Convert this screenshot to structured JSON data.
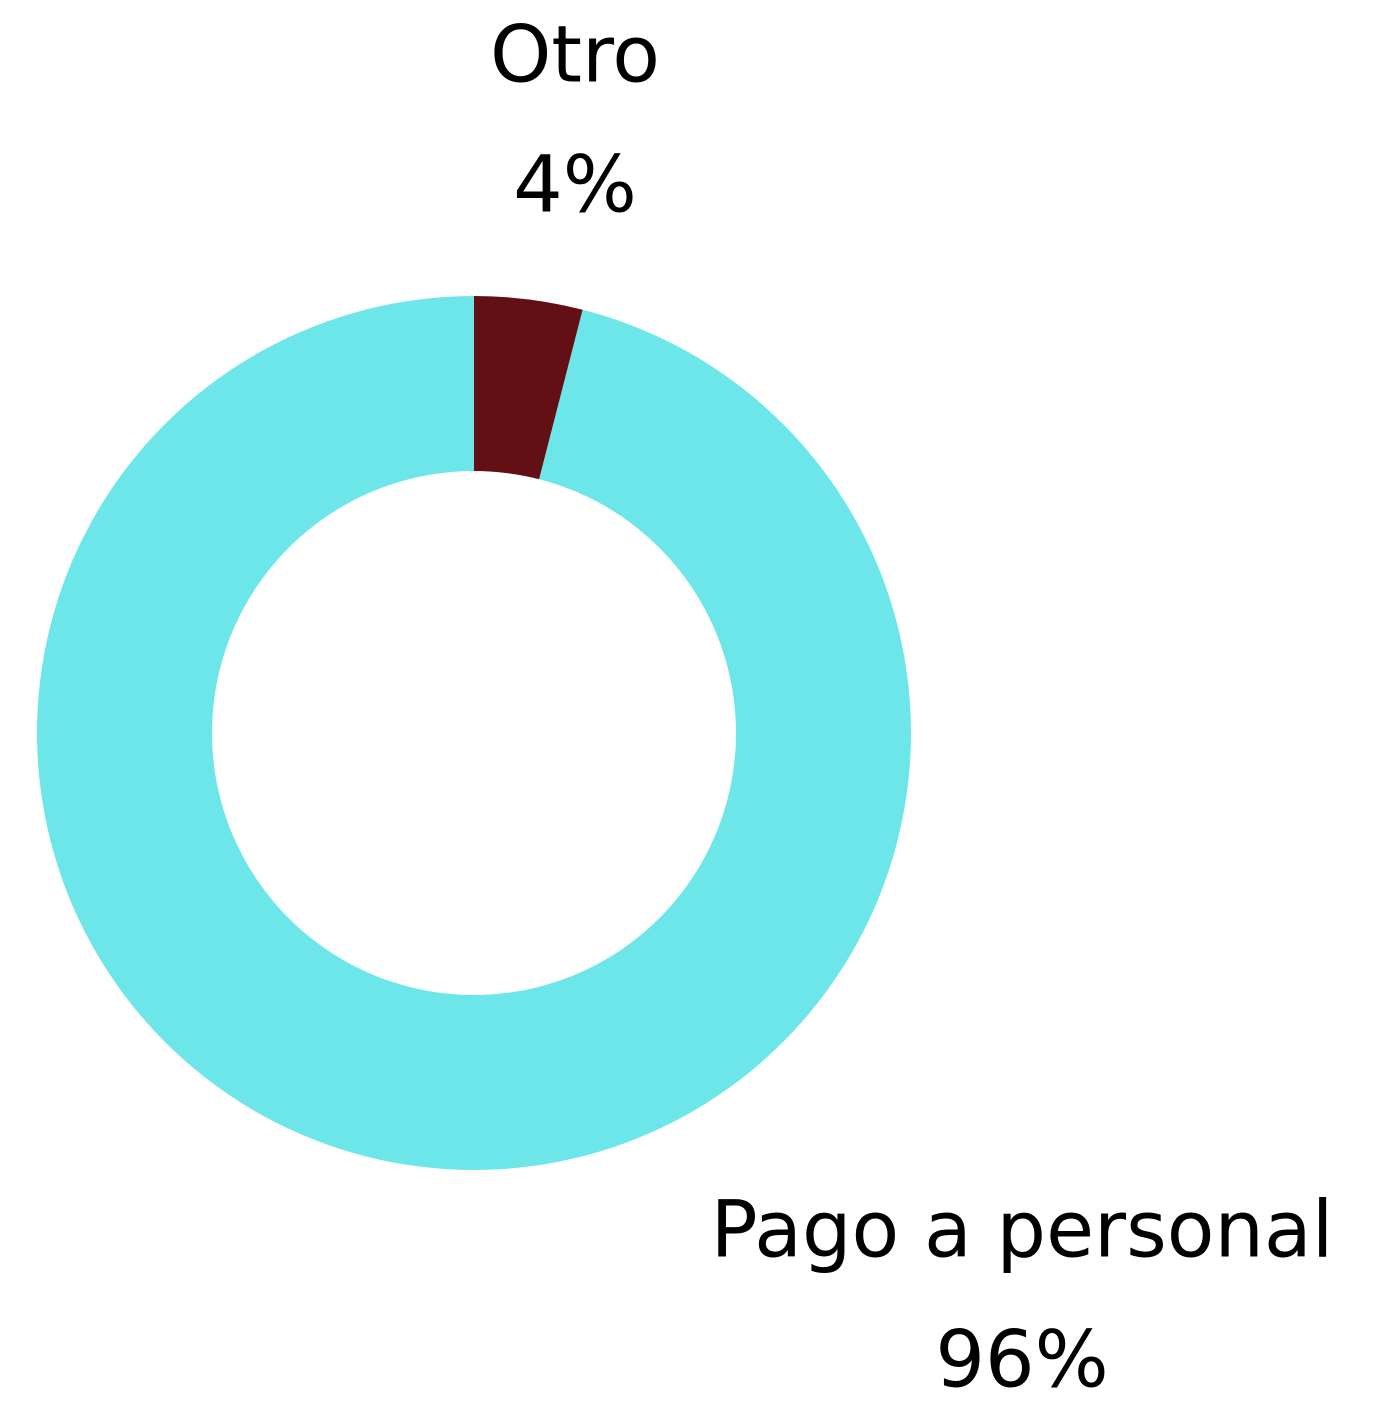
{
  "chart_data": {
    "type": "donut",
    "categories": [
      "Otro",
      "Pago a personal"
    ],
    "values": [
      4,
      96
    ],
    "value_labels": [
      "4%",
      "96%"
    ],
    "colors": [
      "#621014",
      "#6ce6e8"
    ]
  }
}
